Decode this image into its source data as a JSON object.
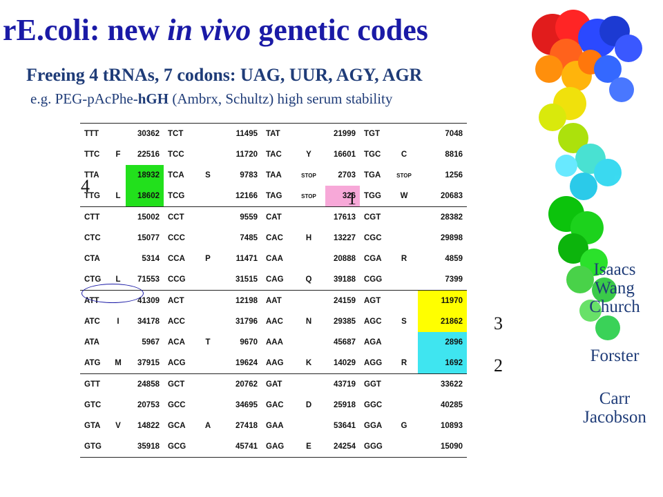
{
  "title": {
    "part1": "rE.coli: new ",
    "italic": "in vivo",
    "part2": " genetic codes"
  },
  "subtitle": "Freeing  4 tRNAs, 7 codons: UAG, UUR, AGY, AGR",
  "example": {
    "prefix": "e.g. PEG-pAcPhe-",
    "bold": "hGH",
    "suffix": "  (Ambrx, Schultz) high serum stability"
  },
  "names": [
    "Isaacs",
    "Wang",
    "Church",
    "Forster",
    "Carr",
    "Jacobson"
  ],
  "markers": [
    "4",
    "1",
    "3",
    "2"
  ],
  "colors": {
    "title": "#1a1aa6",
    "subtitle": "#1f3c78",
    "highlight_green": "#22e01c",
    "highlight_pink": "#f7a8d8",
    "highlight_yellow": "#ffff00",
    "highlight_cyan": "#3fe5f0"
  },
  "codon_table": [
    [
      [
        "TTT",
        "",
        "30362"
      ],
      [
        "TCT",
        "",
        "11495"
      ],
      [
        "TAT",
        "",
        "21999"
      ],
      [
        "TGT",
        "",
        "7048"
      ]
    ],
    [
      [
        "TTC",
        "F",
        "22516"
      ],
      [
        "TCC",
        "",
        "11720"
      ],
      [
        "TAC",
        "Y",
        "16601"
      ],
      [
        "TGC",
        "C",
        "8816"
      ]
    ],
    [
      [
        "TTA",
        "",
        "18932"
      ],
      [
        "TCA",
        "S",
        "9783"
      ],
      [
        "TAA",
        "STOP",
        "2703"
      ],
      [
        "TGA",
        "STOP",
        "1256"
      ]
    ],
    [
      [
        "TTG",
        "L",
        "18602"
      ],
      [
        "TCG",
        "",
        "12166"
      ],
      [
        "TAG",
        "STOP",
        "326"
      ],
      [
        "TGG",
        "W",
        "20683"
      ]
    ],
    [
      [
        "CTT",
        "",
        "15002"
      ],
      [
        "CCT",
        "",
        "9559"
      ],
      [
        "CAT",
        "",
        "17613"
      ],
      [
        "CGT",
        "",
        "28382"
      ]
    ],
    [
      [
        "CTC",
        "",
        "15077"
      ],
      [
        "CCC",
        "",
        "7485"
      ],
      [
        "CAC",
        "H",
        "13227"
      ],
      [
        "CGC",
        "",
        "29898"
      ]
    ],
    [
      [
        "CTA",
        "",
        "5314"
      ],
      [
        "CCA",
        "P",
        "11471"
      ],
      [
        "CAA",
        "",
        "20888"
      ],
      [
        "CGA",
        "R",
        "4859"
      ]
    ],
    [
      [
        "CTG",
        "L",
        "71553"
      ],
      [
        "CCG",
        "",
        "31515"
      ],
      [
        "CAG",
        "Q",
        "39188"
      ],
      [
        "CGG",
        "",
        "7399"
      ]
    ],
    [
      [
        "ATT",
        "",
        "41309"
      ],
      [
        "ACT",
        "",
        "12198"
      ],
      [
        "AAT",
        "",
        "24159"
      ],
      [
        "AGT",
        "",
        "11970"
      ]
    ],
    [
      [
        "ATC",
        "I",
        "34178"
      ],
      [
        "ACC",
        "",
        "31796"
      ],
      [
        "AAC",
        "N",
        "29385"
      ],
      [
        "AGC",
        "S",
        "21862"
      ]
    ],
    [
      [
        "ATA",
        "",
        "5967"
      ],
      [
        "ACA",
        "T",
        "9670"
      ],
      [
        "AAA",
        "",
        "45687"
      ],
      [
        "AGA",
        "",
        "2896"
      ]
    ],
    [
      [
        "ATG",
        "M",
        "37915"
      ],
      [
        "ACG",
        "",
        "19624"
      ],
      [
        "AAG",
        "K",
        "14029"
      ],
      [
        "AGG",
        "R",
        "1692"
      ]
    ],
    [
      [
        "GTT",
        "",
        "24858"
      ],
      [
        "GCT",
        "",
        "20762"
      ],
      [
        "GAT",
        "",
        "43719"
      ],
      [
        "GGT",
        "",
        "33622"
      ]
    ],
    [
      [
        "GTC",
        "",
        "20753"
      ],
      [
        "GCC",
        "",
        "34695"
      ],
      [
        "GAC",
        "D",
        "25918"
      ],
      [
        "GGC",
        "",
        "40285"
      ]
    ],
    [
      [
        "GTA",
        "V",
        "14822"
      ],
      [
        "GCA",
        "A",
        "27418"
      ],
      [
        "GAA",
        "",
        "53641"
      ],
      [
        "GGA",
        "G",
        "10893"
      ]
    ],
    [
      [
        "GTG",
        "",
        "35918"
      ],
      [
        "GCG",
        "",
        "45741"
      ],
      [
        "GAG",
        "E",
        "24254"
      ],
      [
        "GGG",
        "",
        "15090"
      ]
    ]
  ]
}
